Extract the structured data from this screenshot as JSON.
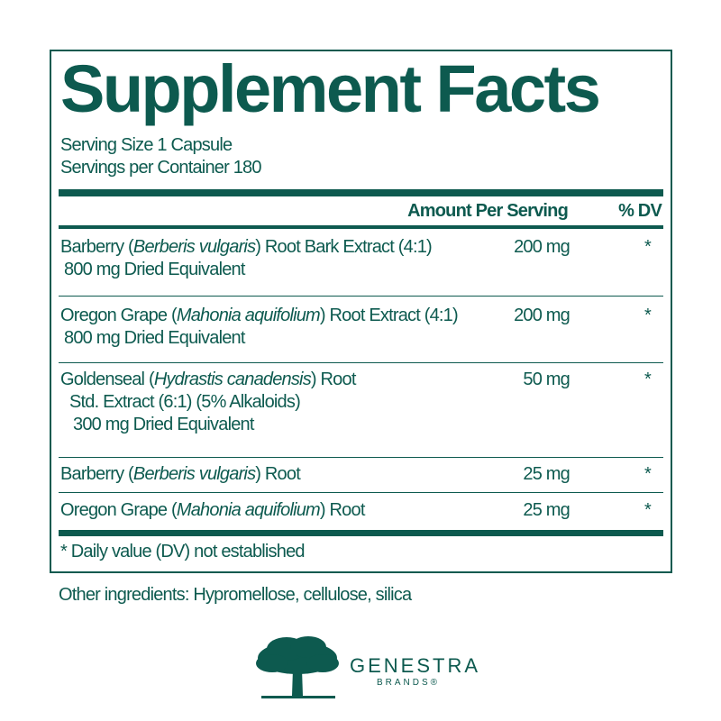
{
  "title": "Supplement Facts",
  "serving_size": "Serving Size 1 Capsule",
  "servings_per_container": "Servings per Container 180",
  "header": {
    "amount": "Amount Per Serving",
    "dv": "% DV"
  },
  "rows": [
    {
      "name": "Barberry (",
      "latin": "Berberis vulgaris",
      "rest": ") Root Bark Extract (4:1)",
      "line2": "800 mg Dried Equivalent",
      "amount": "200 mg",
      "dv": "*"
    },
    {
      "name": "Oregon Grape (",
      "latin": "Mahonia aquifolium",
      "rest": ") Root Extract (4:1)",
      "line2": "800 mg Dried Equivalent",
      "amount": "200 mg",
      "dv": "*"
    },
    {
      "name": "Goldenseal (",
      "latin": "Hydrastis canadensis",
      "rest": ") Root",
      "line2": "Std. Extract (6:1) (5% Alkaloids)",
      "line3": "300 mg Dried Equivalent",
      "amount": "50 mg",
      "dv": "*"
    },
    {
      "name": "Barberry (",
      "latin": "Berberis vulgaris",
      "rest": ") Root",
      "amount": "25 mg",
      "dv": "*"
    },
    {
      "name": "Oregon Grape (",
      "latin": "Mahonia aquifolium",
      "rest": ") Root",
      "amount": "25 mg",
      "dv": "*"
    }
  ],
  "footnote": "* Daily value (DV) not established",
  "other_ingredients": "Other ingredients: Hypromellose, cellulose, silica",
  "brand": {
    "name": "GENESTRA",
    "sub": "BRANDS®",
    "color": "#0d5a4f"
  }
}
